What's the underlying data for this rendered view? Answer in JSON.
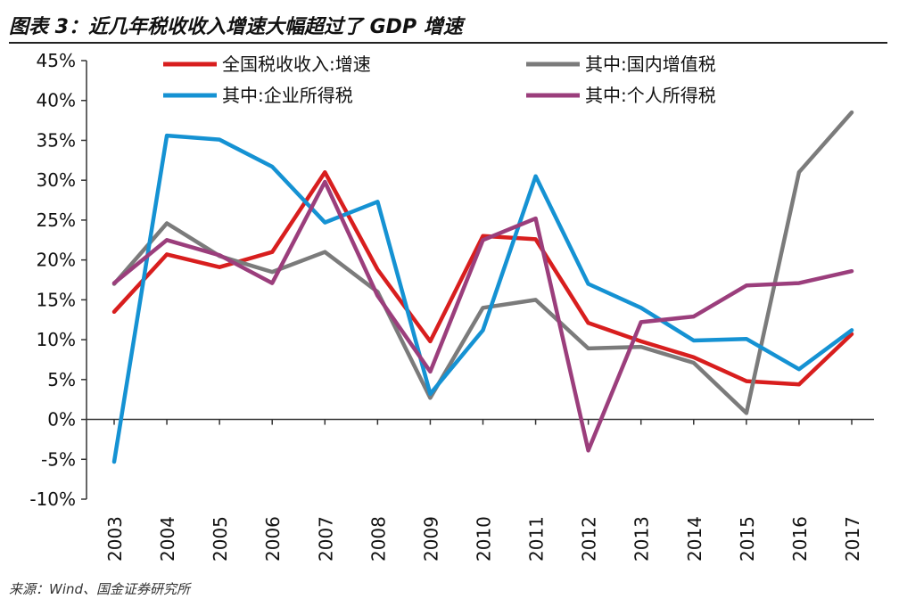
{
  "title": "图表 3：近几年税收收入增速大幅超过了 GDP 增速",
  "source": "来源：Wind、国金证券研究所",
  "chart_data": {
    "type": "line",
    "title": "图表 3：近几年税收收入增速大幅超过了 GDP 增速",
    "xlabel": "",
    "ylabel": "",
    "x": [
      "2003",
      "2004",
      "2005",
      "2006",
      "2007",
      "2008",
      "2009",
      "2010",
      "2011",
      "2012",
      "2013",
      "2014",
      "2015",
      "2016",
      "2017"
    ],
    "ylim": [
      -10,
      45
    ],
    "yticks": [
      -10,
      -5,
      0,
      5,
      10,
      15,
      20,
      25,
      30,
      35,
      40,
      45
    ],
    "ytick_labels": [
      "-10%",
      "-5%",
      "0%",
      "5%",
      "10%",
      "15%",
      "20%",
      "25%",
      "30%",
      "35%",
      "40%",
      "45%"
    ],
    "grid": false,
    "legend_position": "top",
    "series": [
      {
        "name": "全国税收收入:增速",
        "color": "#d81e1e",
        "values": [
          13.5,
          20.7,
          19.1,
          21.0,
          31.0,
          18.8,
          9.8,
          23.0,
          22.6,
          12.1,
          9.8,
          7.8,
          4.8,
          4.4,
          10.7
        ]
      },
      {
        "name": "其中:国内增值税",
        "color": "#7b7b7b",
        "values": [
          17.0,
          24.6,
          20.5,
          18.5,
          21.0,
          16.0,
          2.7,
          14.0,
          15.0,
          8.9,
          9.1,
          7.1,
          0.8,
          31.0,
          38.5
        ]
      },
      {
        "name": "其中:企业所得税",
        "color": "#1592d3",
        "values": [
          -5.3,
          35.6,
          35.1,
          31.7,
          24.7,
          27.3,
          3.2,
          11.2,
          30.5,
          17.0,
          14.0,
          9.9,
          10.1,
          6.3,
          11.2
        ]
      },
      {
        "name": "其中:个人所得税",
        "color": "#9b3e7c",
        "values": [
          17.1,
          22.5,
          20.6,
          17.1,
          29.8,
          15.5,
          6.0,
          22.5,
          25.2,
          -3.9,
          12.2,
          12.9,
          16.8,
          17.1,
          18.6
        ]
      }
    ]
  }
}
